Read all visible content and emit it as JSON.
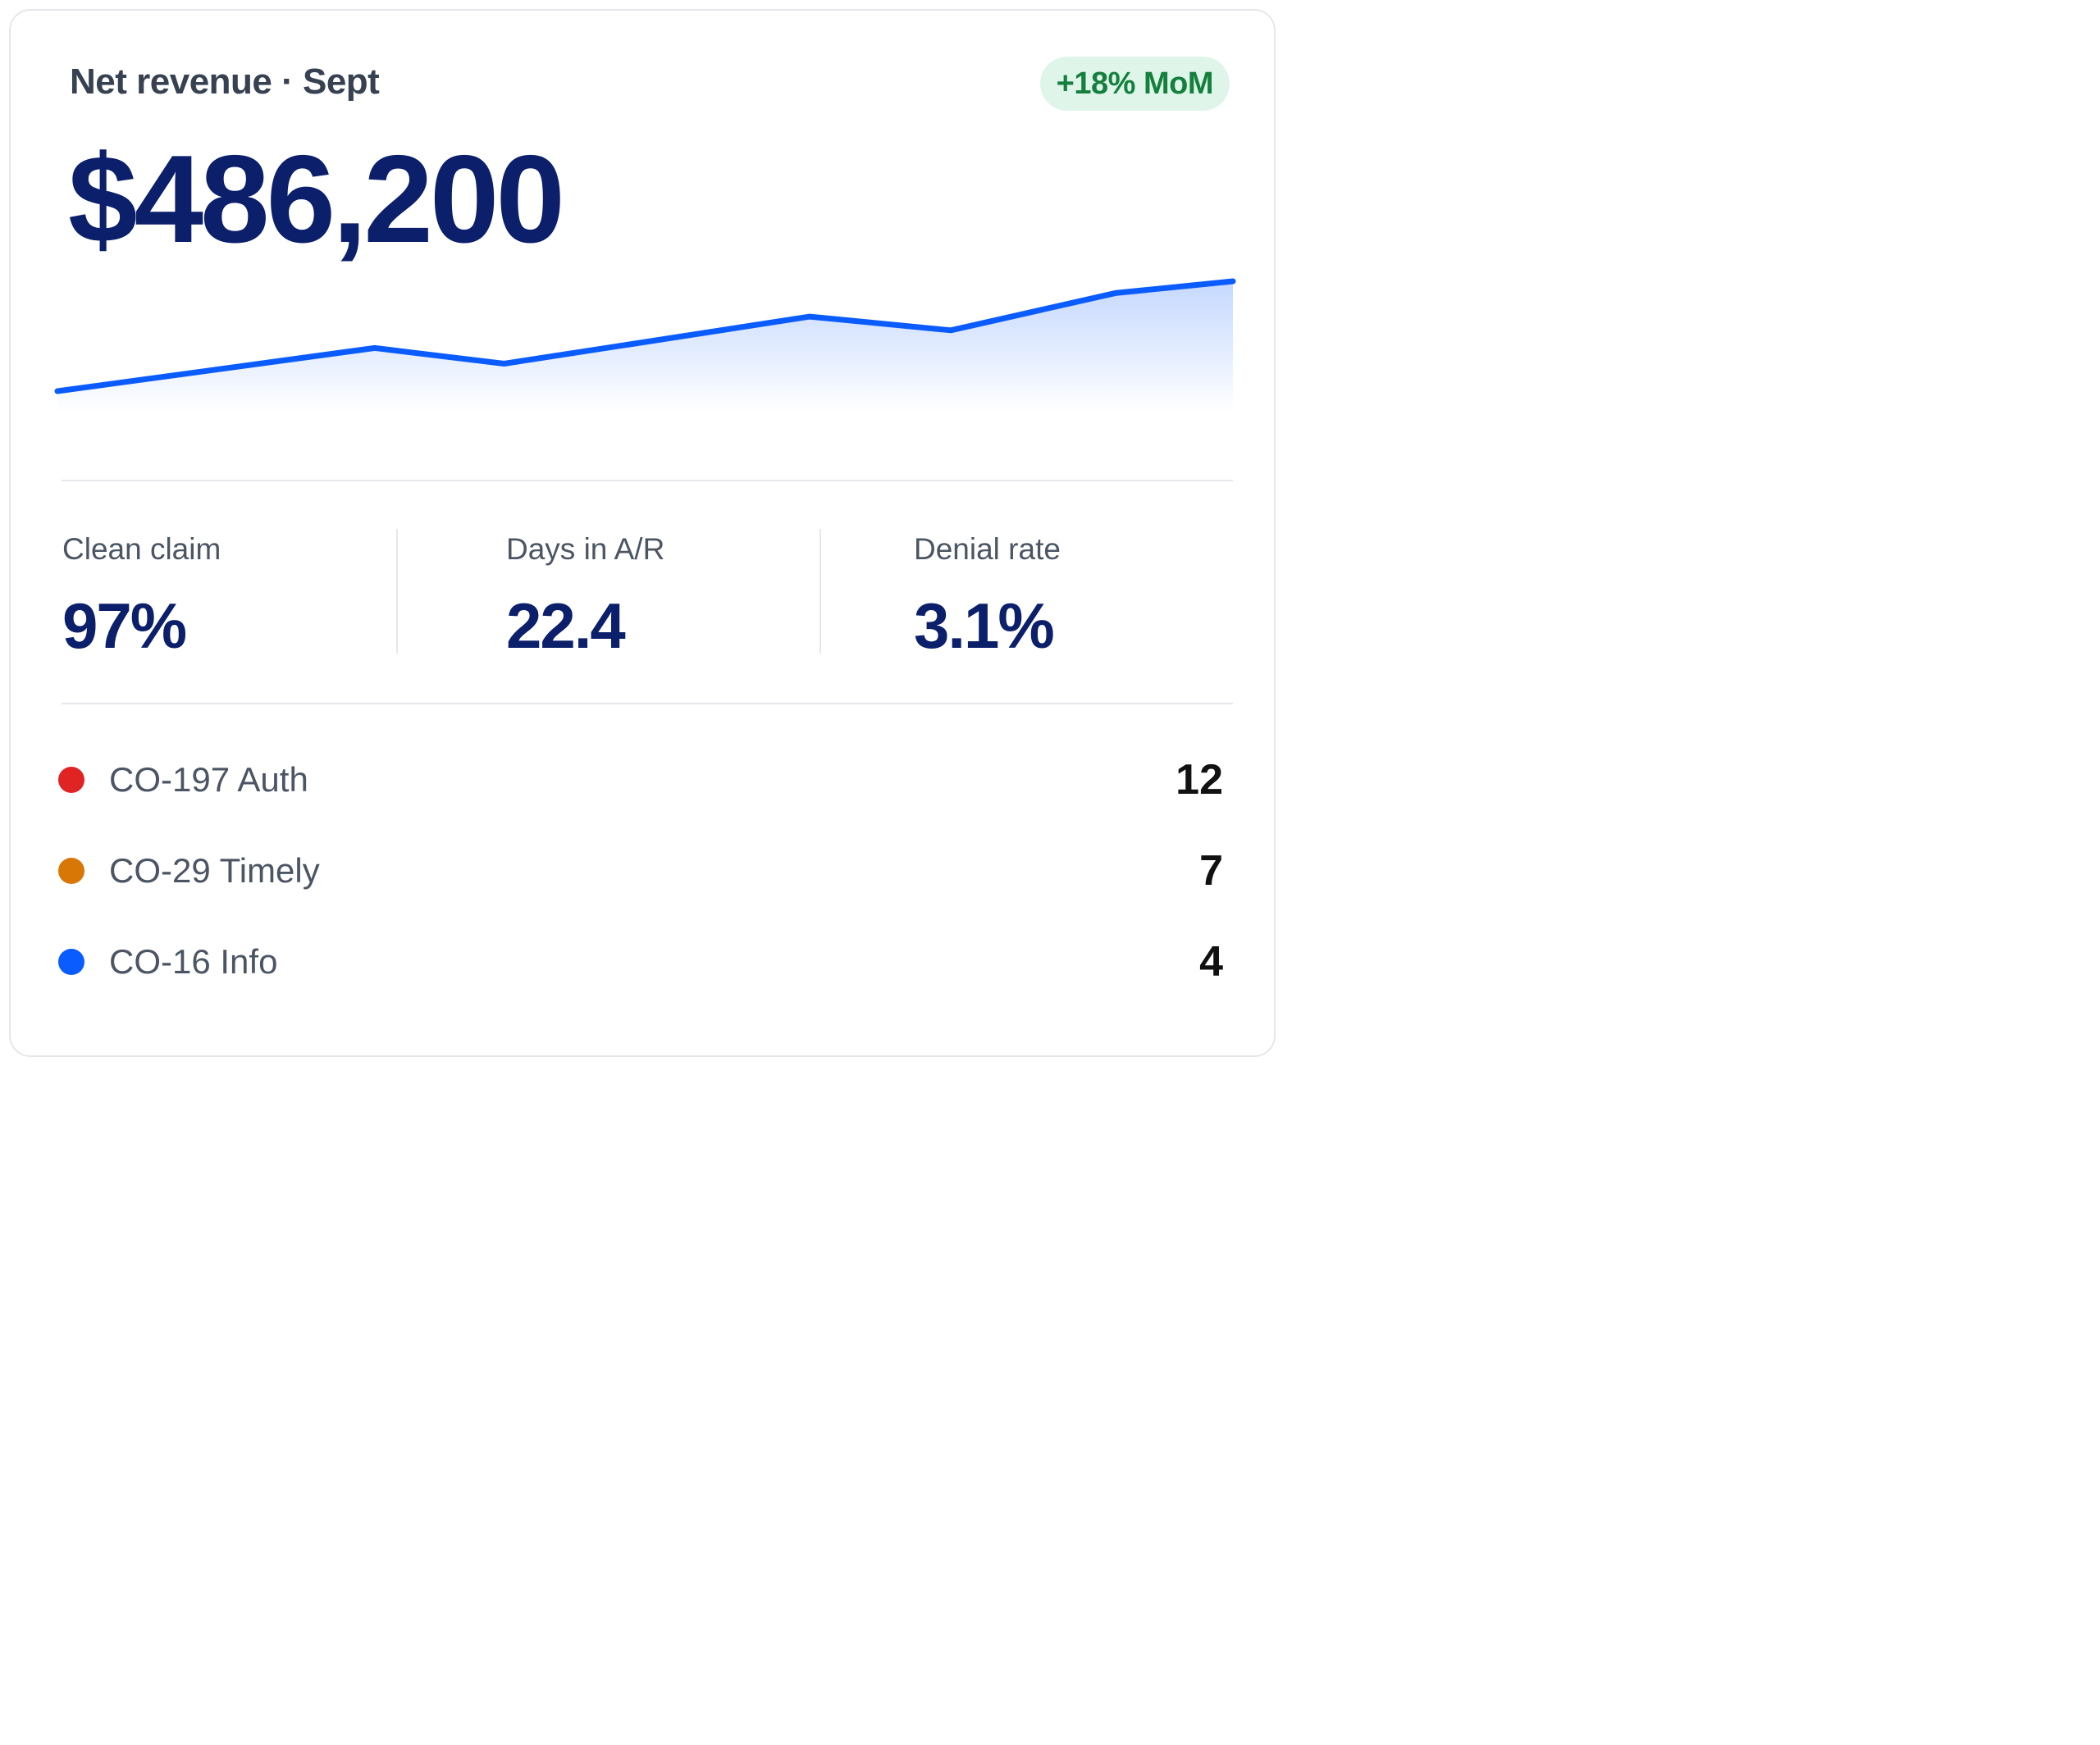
{
  "header": {
    "title": "Net revenue · Sept",
    "badge": "+18% MoM",
    "value": "$486,200"
  },
  "colors": {
    "accent": "#0b5cff",
    "value_text": "#0b1f6b",
    "badge_text": "#15803d",
    "badge_bg": "#dff5ea"
  },
  "chart_data": {
    "type": "area",
    "values": [
      0,
      22,
      14,
      38,
      31,
      50,
      56
    ],
    "x": [
      0,
      0.27,
      0.38,
      0.64,
      0.76,
      0.9,
      1
    ],
    "title": "",
    "xlabel": "",
    "ylabel": "",
    "ylim": [
      0,
      56
    ]
  },
  "kpis": [
    {
      "label": "Clean claim",
      "value": "97%"
    },
    {
      "label": "Days in A/R",
      "value": "22.4"
    },
    {
      "label": "Denial rate",
      "value": "3.1%"
    }
  ],
  "codes": [
    {
      "label": "CO-197 Auth",
      "count": "12",
      "color": "#e02424"
    },
    {
      "label": "CO-29 Timely",
      "count": "7",
      "color": "#d97706"
    },
    {
      "label": "CO-16 Info",
      "count": "4",
      "color": "#0b5cff"
    }
  ]
}
